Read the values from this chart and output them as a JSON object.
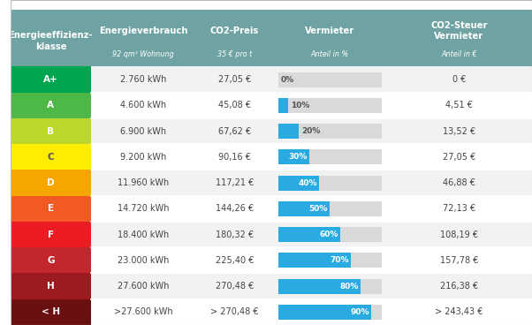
{
  "header_bg": "#6FA3A3",
  "header_text_color": "#ffffff",
  "row_bg_even": "#f2f2f2",
  "row_bg_odd": "#ffffff",
  "row_divider": "#ffffff",
  "bar_color": "#29ABE2",
  "bar_bg_color": "#d9d9d9",
  "col_headers": [
    "Energieeffizienz-\nklasse",
    "Energieverbrauch",
    "CO2-Preis",
    "Vermieter",
    "CO2-Steuer\nVermieter"
  ],
  "col_subheaders": [
    "",
    "92 qm² Wohnung",
    "35 € pro t",
    "Anteil in %",
    "Anteil in €"
  ],
  "rows": [
    {
      "label": "A+",
      "color": "#00A550",
      "energy": "2.760 kWh",
      "co2": "27,05 €",
      "pct": 0,
      "cost": "0 €"
    },
    {
      "label": "A",
      "color": "#4DB848",
      "energy": "4.600 kWh",
      "co2": "45,08 €",
      "pct": 10,
      "cost": "4,51 €"
    },
    {
      "label": "B",
      "color": "#BDD62E",
      "energy": "6.900 kWh",
      "co2": "67,62 €",
      "pct": 20,
      "cost": "13,52 €"
    },
    {
      "label": "C",
      "color": "#FFED00",
      "energy": "9.200 kWh",
      "co2": "90,16 €",
      "pct": 30,
      "cost": "27,05 €"
    },
    {
      "label": "D",
      "color": "#F7A600",
      "energy": "11.960 kWh",
      "co2": "117,21 €",
      "pct": 40,
      "cost": "46,88 €"
    },
    {
      "label": "E",
      "color": "#F15A22",
      "energy": "14.720 kWh",
      "co2": "144,26 €",
      "pct": 50,
      "cost": "72,13 €"
    },
    {
      "label": "F",
      "color": "#ED1C24",
      "energy": "18.400 kWh",
      "co2": "180,32 €",
      "pct": 60,
      "cost": "108,19 €"
    },
    {
      "label": "G",
      "color": "#C1272D",
      "energy": "23.000 kWh",
      "co2": "225,40 €",
      "pct": 70,
      "cost": "157,78 €"
    },
    {
      "label": "H",
      "color": "#9B1B1F",
      "energy": "27.600 kWh",
      "co2": "270,48 €",
      "pct": 80,
      "cost": "216,38 €"
    },
    {
      "label": "< H",
      "color": "#6B1010",
      "energy": ">27.600 kWh",
      "co2": "> 270,48 €",
      "pct": 90,
      "cost": "> 243,43 €"
    }
  ],
  "figsize": [
    6.02,
    3.68
  ],
  "dpi": 100,
  "label_text_colors": [
    "#ffffff",
    "#ffffff",
    "#ffffff",
    "#555555",
    "#ffffff",
    "#ffffff",
    "#ffffff",
    "#ffffff",
    "#ffffff",
    "#ffffff"
  ]
}
